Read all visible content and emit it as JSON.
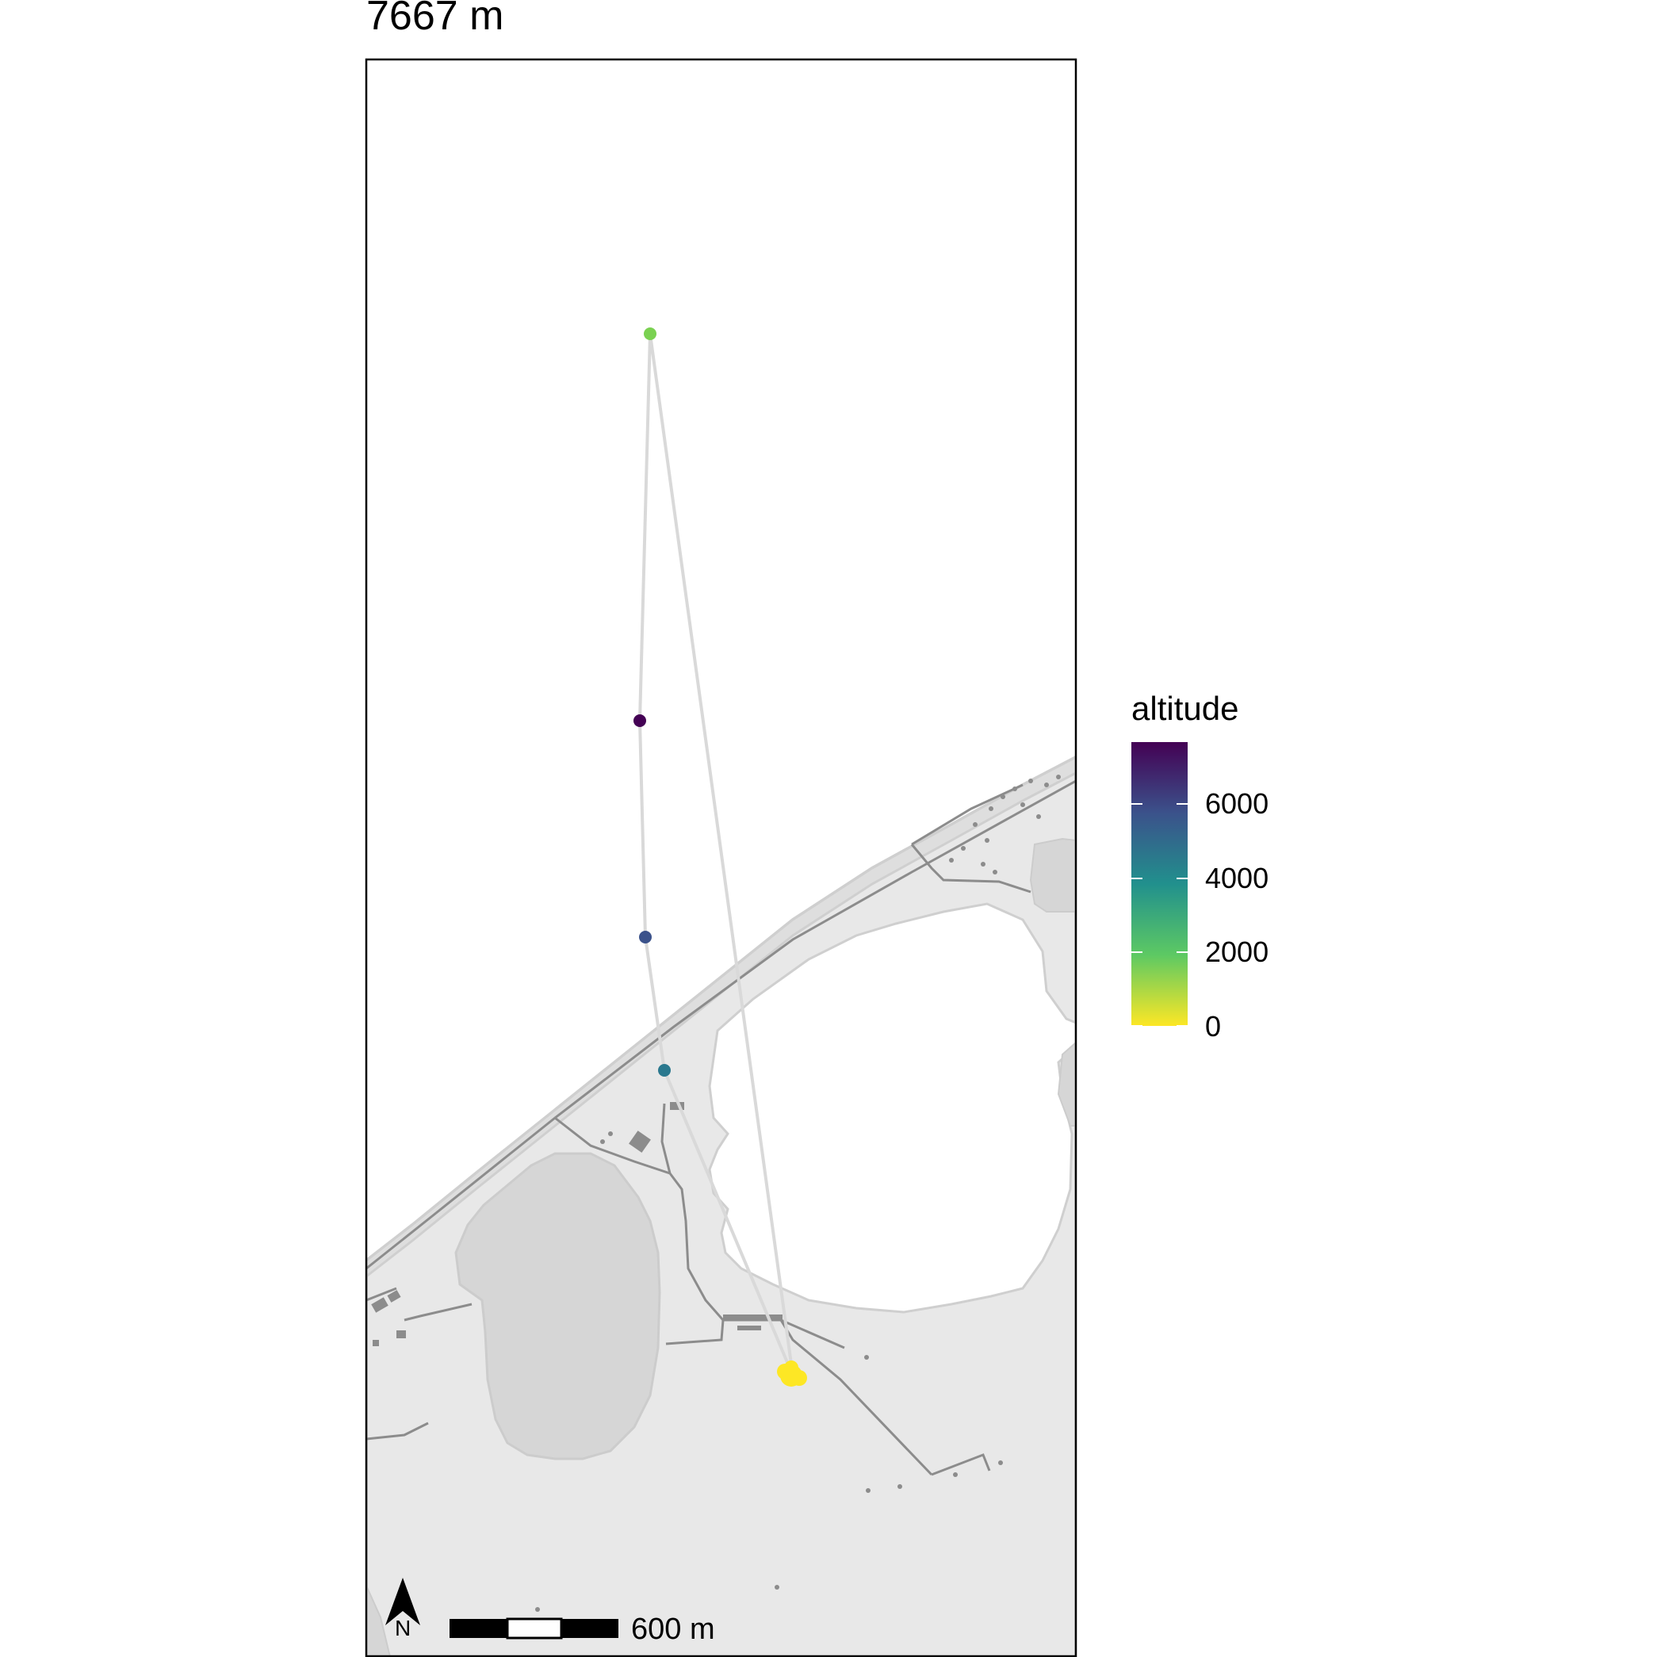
{
  "title": "7667 m",
  "legend": {
    "title": "altitude",
    "ticks": [
      "6000",
      "4000",
      "2000",
      "0"
    ],
    "colors": [
      "#440154",
      "#3b528b",
      "#21908d",
      "#5dc963",
      "#fde725"
    ]
  },
  "scale_bar": {
    "label": "600 m"
  },
  "north_arrow": {
    "label": "N"
  },
  "track": {
    "line_color": "#d9d9d9",
    "points": [
      {
        "altitude": 1500,
        "color": "#7ad151"
      },
      {
        "altitude": 7667,
        "color": "#440154"
      },
      {
        "altitude": 5300,
        "color": "#3b528b"
      },
      {
        "altitude": 3300,
        "color": "#2a788e"
      },
      {
        "altitude": 0,
        "color": "#fde725"
      }
    ]
  },
  "colors": {
    "land": "#e8e8e8",
    "water": "#d6d6d6",
    "roads": "#8c8c8c",
    "outline": "#cfcfcf"
  }
}
